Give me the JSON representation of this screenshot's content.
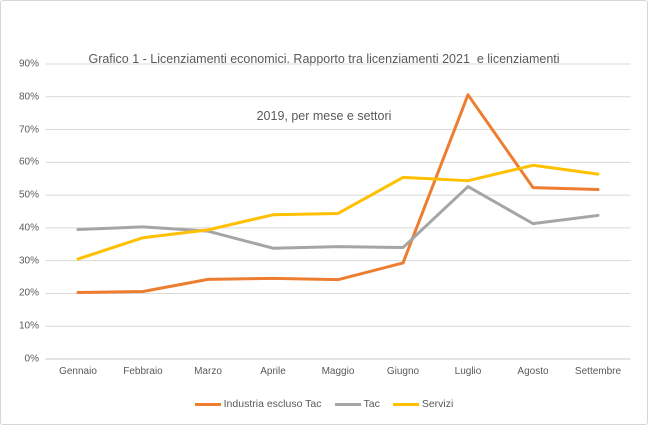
{
  "chart": {
    "title_line1": "Grafico 1 - Licenziamenti economici. Rapporto tra licenziamenti 2021  e licenziamenti",
    "title_line2": "2019, per mese e settori"
  },
  "chart_data": {
    "type": "line",
    "title": "Grafico 1 - Licenziamenti economici. Rapporto tra licenziamenti 2021 e licenziamenti 2019, per mese e settori",
    "categories": [
      "Gennaio",
      "Febbraio",
      "Marzo",
      "Aprile",
      "Maggio",
      "Giugno",
      "Luglio",
      "Agosto",
      "Settembre"
    ],
    "series": [
      {
        "name": "Industria escluso Tac",
        "color": "#ED7D31",
        "values": [
          20.3,
          20.6,
          24.3,
          24.6,
          24.2,
          29.3,
          80.6,
          52.3,
          51.7
        ]
      },
      {
        "name": "Tac",
        "color": "#A5A5A5",
        "values": [
          39.5,
          40.3,
          39.0,
          33.8,
          34.3,
          34.0,
          52.6,
          41.3,
          43.8
        ]
      },
      {
        "name": "Servizi",
        "color": "#FFC000",
        "values": [
          30.5,
          37.0,
          39.4,
          44.0,
          44.4,
          55.4,
          54.4,
          59.1,
          56.4
        ]
      }
    ],
    "xlabel": "",
    "ylabel": "",
    "ylim": [
      0,
      90
    ],
    "y_tick_step": 10,
    "y_tick_labels": [
      "0%",
      "10%",
      "20%",
      "30%",
      "40%",
      "50%",
      "60%",
      "70%",
      "80%",
      "90%"
    ],
    "grid": true,
    "legend_position": "bottom"
  },
  "colors": {
    "text": "#595959",
    "gridline": "#D9D9D9",
    "axis_line": "#C8C8C8",
    "frame_border": "#D6D6D6",
    "background": "#FFFFFF"
  }
}
